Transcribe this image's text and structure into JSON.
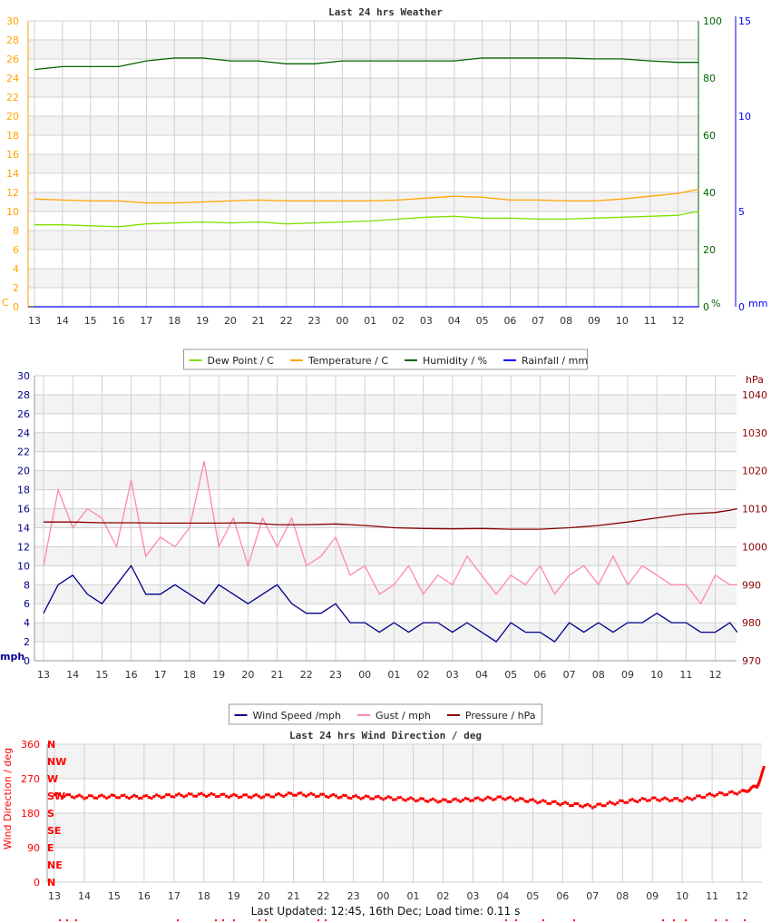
{
  "footer": "Last Updated: 12:45, 16th Dec; Load time: 0.11 s",
  "colors": {
    "dew": "#7fe000",
    "temp": "#ffa500",
    "hum": "#006400",
    "rain": "#0000ff",
    "wind": "#00008b",
    "gust": "#ff88aa",
    "pressure": "#8b0000",
    "dir": "#ff0000",
    "grid": "#d0d0d0",
    "band": "#f3f3f3"
  },
  "hour_labels": [
    "13",
    "14",
    "15",
    "16",
    "17",
    "18",
    "19",
    "20",
    "21",
    "22",
    "23",
    "00",
    "01",
    "02",
    "03",
    "04",
    "05",
    "06",
    "07",
    "08",
    "09",
    "10",
    "11",
    "12"
  ],
  "chart_data": [
    {
      "type": "line",
      "title": "Last 24 hrs Weather",
      "grid": true,
      "legend_placement": "bottom",
      "axes": {
        "left": {
          "label": "C",
          "range": [
            0,
            30
          ],
          "ticks": [
            0,
            2,
            4,
            6,
            8,
            10,
            12,
            14,
            16,
            18,
            20,
            22,
            24,
            26,
            28,
            30
          ]
        },
        "right1": {
          "label": "%",
          "range": [
            0,
            100
          ],
          "ticks": [
            0,
            20,
            40,
            60,
            80,
            100
          ]
        },
        "right2": {
          "label": "mm",
          "range": [
            0,
            15
          ],
          "ticks": [
            0,
            5,
            10,
            15
          ]
        }
      },
      "x": [
        "13:00",
        "14:00",
        "15:00",
        "16:00",
        "17:00",
        "18:00",
        "19:00",
        "20:00",
        "21:00",
        "22:00",
        "23:00",
        "00:00",
        "01:00",
        "02:00",
        "03:00",
        "04:00",
        "05:00",
        "06:00",
        "07:00",
        "08:00",
        "09:00",
        "10:00",
        "11:00",
        "12:00",
        "12:30",
        "12:45"
      ],
      "series": [
        {
          "name": "Dew Point / C",
          "axis": "left",
          "color": "#7fe000",
          "values": [
            8.6,
            8.6,
            8.5,
            8.4,
            8.7,
            8.8,
            8.9,
            8.8,
            8.9,
            8.7,
            8.8,
            8.9,
            9.0,
            9.2,
            9.4,
            9.5,
            9.3,
            9.3,
            9.2,
            9.2,
            9.3,
            9.4,
            9.5,
            9.6,
            9.9,
            10.0
          ]
        },
        {
          "name": "Temperature / C",
          "axis": "left",
          "color": "#ffa500",
          "values": [
            11.3,
            11.2,
            11.1,
            11.1,
            10.9,
            10.9,
            11.0,
            11.1,
            11.2,
            11.1,
            11.1,
            11.1,
            11.1,
            11.2,
            11.4,
            11.6,
            11.5,
            11.2,
            11.2,
            11.1,
            11.1,
            11.3,
            11.6,
            11.9,
            12.2,
            12.3
          ]
        },
        {
          "name": "Humidity / %",
          "axis": "right1",
          "color": "#006400",
          "values": [
            83,
            84,
            84,
            84,
            86,
            87,
            87,
            86,
            86,
            85,
            85,
            86,
            86,
            86,
            86,
            86,
            87,
            87,
            87,
            87,
            86.7,
            86.7,
            86,
            85.5,
            85.5,
            85.5
          ]
        },
        {
          "name": "Rainfall / mm",
          "axis": "right2",
          "color": "#0000ff",
          "values": [
            0,
            0,
            0,
            0,
            0,
            0,
            0,
            0,
            0,
            0,
            0,
            0,
            0,
            0,
            0,
            0,
            0,
            0,
            0,
            0,
            0,
            0,
            0,
            0,
            0,
            0
          ]
        }
      ]
    },
    {
      "type": "line",
      "title": "",
      "grid": true,
      "legend_placement": "bottom",
      "axes": {
        "left": {
          "label": "mph",
          "range": [
            0,
            30
          ],
          "ticks": [
            0,
            2,
            4,
            6,
            8,
            10,
            12,
            14,
            16,
            18,
            20,
            22,
            24,
            26,
            28,
            30
          ]
        },
        "right": {
          "label": "hPa",
          "range": [
            970,
            1045
          ],
          "ticks": [
            970,
            980,
            990,
            1000,
            1010,
            1020,
            1030,
            1040
          ]
        }
      },
      "x": [
        "13:00",
        "13:30",
        "14:00",
        "14:30",
        "15:00",
        "15:30",
        "16:00",
        "16:30",
        "17:00",
        "17:30",
        "18:00",
        "18:30",
        "19:00",
        "19:30",
        "20:00",
        "20:30",
        "21:00",
        "21:30",
        "22:00",
        "22:30",
        "23:00",
        "23:30",
        "00:00",
        "00:30",
        "01:00",
        "01:30",
        "02:00",
        "02:30",
        "03:00",
        "03:30",
        "04:00",
        "04:30",
        "05:00",
        "05:30",
        "06:00",
        "06:30",
        "07:00",
        "07:30",
        "08:00",
        "08:30",
        "09:00",
        "09:30",
        "10:00",
        "10:30",
        "11:00",
        "11:30",
        "12:00",
        "12:30",
        "12:45"
      ],
      "series": [
        {
          "name": "Wind Speed /mph",
          "axis": "left",
          "color": "#00008b",
          "values": [
            5,
            8,
            9,
            7,
            6,
            8,
            10,
            7,
            7,
            8,
            7,
            6,
            8,
            7,
            6,
            7,
            8,
            6,
            5,
            5,
            6,
            4,
            4,
            3,
            4,
            3,
            4,
            4,
            3,
            4,
            3,
            2,
            4,
            3,
            3,
            2,
            4,
            3,
            4,
            3,
            4,
            4,
            5,
            4,
            4,
            3,
            3,
            4,
            3
          ]
        },
        {
          "name": "Gust / mph",
          "axis": "left",
          "color": "#ff88aa",
          "values": [
            10,
            18,
            14,
            16,
            15,
            12,
            19,
            11,
            13,
            12,
            14,
            21,
            12,
            15,
            10,
            15,
            12,
            15,
            10,
            11,
            13,
            9,
            10,
            7,
            8,
            10,
            7,
            9,
            8,
            11,
            9,
            7,
            9,
            8,
            10,
            7,
            9,
            10,
            8,
            11,
            8,
            10,
            9,
            8,
            8,
            6,
            9,
            8,
            8
          ]
        },
        {
          "name": "Pressure / hPa",
          "axis": "right",
          "color": "#8b0000",
          "x": [
            "13:00",
            "14:00",
            "15:00",
            "16:00",
            "17:00",
            "18:00",
            "19:00",
            "20:00",
            "21:00",
            "22:00",
            "23:00",
            "00:00",
            "01:00",
            "02:00",
            "03:00",
            "04:00",
            "05:00",
            "06:00",
            "07:00",
            "08:00",
            "09:00",
            "10:00",
            "11:00",
            "12:00",
            "12:30",
            "12:45"
          ],
          "values": [
            1006.5,
            1006.5,
            1006.3,
            1006.3,
            1006.2,
            1006.2,
            1006.2,
            1006.3,
            1005.8,
            1005.8,
            1006.0,
            1005.6,
            1005.0,
            1004.8,
            1004.7,
            1004.8,
            1004.6,
            1004.6,
            1005.0,
            1005.6,
            1006.5,
            1007.6,
            1008.6,
            1009.0,
            1009.6,
            1010.0
          ]
        }
      ]
    },
    {
      "type": "scatter",
      "title": "Last 24 hrs Wind Direction / deg",
      "ylabel": "Wind Direction / deg",
      "grid": true,
      "axes": {
        "left": {
          "range": [
            0,
            360
          ],
          "ticks": [
            0,
            90,
            180,
            270,
            360
          ]
        }
      },
      "compass_labels": [
        "N",
        "NE",
        "E",
        "SE",
        "S",
        "SW",
        "W",
        "NW",
        "N"
      ],
      "x": [
        "13:00",
        "14:00",
        "15:00",
        "16:00",
        "17:00",
        "18:00",
        "19:00",
        "20:00",
        "21:00",
        "22:00",
        "23:00",
        "00:00",
        "01:00",
        "02:00",
        "03:00",
        "04:00",
        "05:00",
        "06:00",
        "07:00",
        "08:00",
        "09:00",
        "10:00",
        "11:00",
        "12:00",
        "12:30",
        "12:45"
      ],
      "series": [
        {
          "name": "",
          "color": "#ff0000",
          "values": [
            228,
            222,
            224,
            222,
            226,
            228,
            225,
            224,
            230,
            226,
            222,
            220,
            216,
            212,
            216,
            220,
            212,
            205,
            198,
            210,
            217,
            215,
            228,
            235,
            250,
            300
          ]
        }
      ]
    }
  ]
}
